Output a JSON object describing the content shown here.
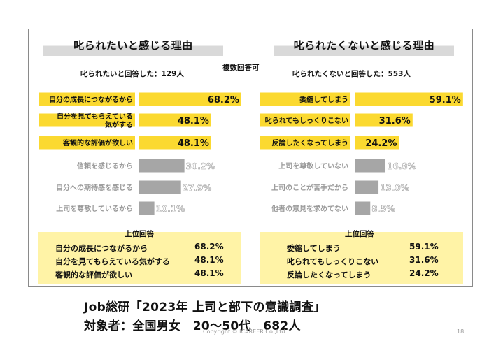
{
  "left": {
    "title": "叱られたいと感じる理由",
    "respondents": "叱られたいと回答した：129人",
    "top_title": "上位回答",
    "top_answers": [
      {
        "label": "自分の成長につながるから",
        "value": "68.2%"
      },
      {
        "label": "自分を見てもらえている気がする",
        "value": "48.1%"
      },
      {
        "label": "客観的な評価が欲しい",
        "value": "48.1%"
      }
    ]
  },
  "right": {
    "title": "叱られたくないと感じる理由",
    "respondents": "叱られたくないと回答した：553人",
    "top_title": "上位回答",
    "top_answers": [
      {
        "label": "委縮してしまう",
        "value": "59.1%"
      },
      {
        "label": "叱られてもしっくりこない",
        "value": "31.6%"
      },
      {
        "label": "反論したくなってしまう",
        "value": "24.2%"
      }
    ]
  },
  "multi_answer_note": "複数回答可",
  "source": {
    "line1": "Job総研「2023年 上司と部下の意識調査」",
    "line2": "対象者：全国男女　20～50代　682人"
  },
  "copyright": "Copyright © ICAREER Co.,Ltd.",
  "page_number": "18",
  "colors": {
    "highlight": "#fbd930",
    "muted": "#a6a6a6",
    "top_box": "#fff3a6",
    "title_band": "#d9d9d9"
  },
  "chart_data": [
    {
      "type": "bar",
      "orientation": "horizontal",
      "title": "叱られたいと感じる理由",
      "categories": [
        "自分の成長につながるから",
        "自分を見てもらえている気がする",
        "客観的な評価が欲しい",
        "信頼を感じるから",
        "自分への期待感を感じる",
        "上司を尊敬しているから"
      ],
      "category_lines": [
        [
          "自分の成長につながるから"
        ],
        [
          "自分を見てもらえている",
          "気がする"
        ],
        [
          "客観的な評価が欲しい"
        ],
        [
          "信頼を感じるから"
        ],
        [
          "自分への期待感を感じる"
        ],
        [
          "上司を尊敬しているから"
        ]
      ],
      "values": [
        68.2,
        48.1,
        48.1,
        30.2,
        27.9,
        10.1
      ],
      "value_labels": [
        "68.2%",
        "48.1%",
        "48.1%",
        "30.2%",
        "27.9%",
        "10.1%"
      ],
      "highlighted_count": 3,
      "xlim": [
        0,
        70
      ]
    },
    {
      "type": "bar",
      "orientation": "horizontal",
      "title": "叱られたくないと感じる理由",
      "categories": [
        "委縮してしまう",
        "叱られてもしっくりこない",
        "反論したくなってしまう",
        "上司を尊敬していない",
        "上司のことが苦手だから",
        "他者の意見を求めてない"
      ],
      "category_lines": [
        [
          "委縮してしまう"
        ],
        [
          "叱られてもしっくりこない"
        ],
        [
          "反論したくなってしまう"
        ],
        [
          "上司を尊敬していない"
        ],
        [
          "上司のことが苦手だから"
        ],
        [
          "他者の意見を求めてない"
        ]
      ],
      "values": [
        59.1,
        31.6,
        24.2,
        16.8,
        13.0,
        8.5
      ],
      "value_labels": [
        "59.1%",
        "31.6%",
        "24.2%",
        "16.8%",
        "13.0%",
        "8.5%"
      ],
      "highlighted_count": 3,
      "xlim": [
        0,
        60
      ]
    }
  ]
}
